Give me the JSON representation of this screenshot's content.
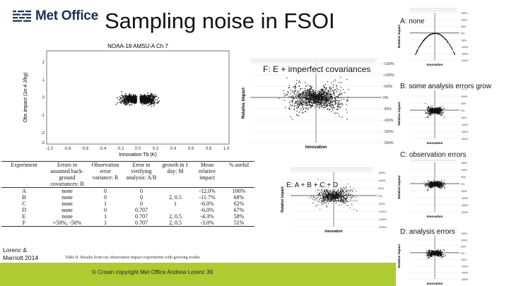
{
  "header": {
    "logo_text": "Met Office",
    "slide_title": "Sampling noise in FSOI"
  },
  "main_plot": {
    "title": "NOAA-18 AMSU-A Ch 7",
    "xlabel": "Innovation Tb (K)",
    "ylabel": "Obs impact (1e-4 J/kg)",
    "x_ticks": [
      "-1.0",
      "-0.8",
      "-0.6",
      "-0.4",
      "-0.2",
      "0.0",
      "0.2",
      "0.4",
      "0.6",
      "0.8",
      "1.0"
    ],
    "y_ticks": [
      "2",
      "1",
      "0",
      "-1",
      "-2",
      "-3"
    ]
  },
  "panels": {
    "a": {
      "label": "A: none"
    },
    "f": {
      "label": "F: E + imperfect covariances"
    },
    "b": {
      "label": "B: some analysis errors grow"
    },
    "c": {
      "label": "C: observation errors"
    },
    "e": {
      "label": "E: A + B + C + D"
    },
    "d": {
      "label": "D: analysis errors"
    }
  },
  "panel_axes": {
    "ylabel": "Relative impact",
    "xlabel": "Innovation",
    "ticks_small": [
      "150%",
      "100%",
      "50%",
      "0%",
      "-50%",
      "-100%",
      "-150%",
      "-200%"
    ],
    "ticks_big": [
      "+150%",
      "+100%",
      "+50%",
      "0%",
      "-50%",
      "-100%",
      "-150%",
      "-200%"
    ]
  },
  "experiment_table": {
    "headers": [
      "Experiment",
      "Errors in assumed back-ground covariances: B",
      "Observation error variance: R",
      "Error in verifying analysis: A/B",
      "growth in 1 day: M",
      "Mean relative impact",
      "% useful"
    ],
    "rows": [
      [
        "A",
        "none",
        "0",
        "0",
        "",
        "-12.0%",
        "100%"
      ],
      [
        "B",
        "none",
        "0",
        "0",
        "2, 0.5",
        "-11.7%",
        "68%"
      ],
      [
        "C",
        "none",
        "1",
        "0",
        "1",
        "-6.0%",
        "62%"
      ],
      [
        "D",
        "none",
        "0",
        "0.707",
        "",
        "-6.0%",
        "67%"
      ],
      [
        "E",
        "none",
        "1",
        "0.707",
        "2, 0.5",
        "-4.3%",
        "58%"
      ],
      [
        "F",
        "+50%, -50%",
        "1",
        "0.707",
        "2, 0.5",
        "-3.0%",
        "51%"
      ]
    ],
    "caption": "Table II. Results from toy observation impact experiments with growing modes"
  },
  "credit": {
    "line1": "Lorenc &",
    "line2": "Marriott 2014"
  },
  "footer": {
    "text": "© Crown copyright   Met Office  Andrew Lorenc  39",
    "color": "#aecb32"
  }
}
